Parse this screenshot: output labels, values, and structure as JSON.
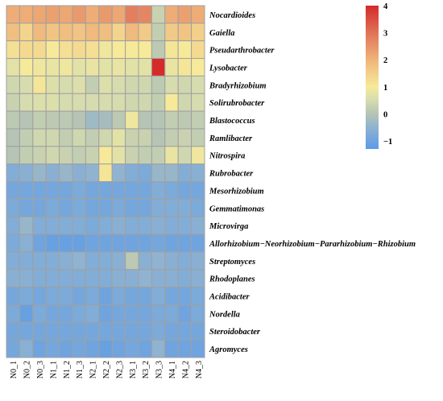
{
  "chart_data": {
    "type": "heatmap",
    "rows": [
      "Nocardioides",
      "Gaiella",
      "Pseudarthrobacter",
      "Lysobacter",
      "Bradyrhizobium",
      "Solirubrobacter",
      "Blastococcus",
      "Ramlibacter",
      "Nitrospira",
      "Rubrobacter",
      "Mesorhizobium",
      "Gemmatimonas",
      "Microvirga",
      "Allorhizobium−Neorhizobium−Pararhizobium−Rhizobium",
      "Streptomyces",
      "Rhodoplanes",
      "Acidibacter",
      "Nordella",
      "Steroidobacter",
      "Agromyces"
    ],
    "columns": [
      "N0_1",
      "N0_2",
      "N0_3",
      "N1_1",
      "N1_2",
      "N1_3",
      "N2_1",
      "N2_2",
      "N2_3",
      "N3_1",
      "N3_2",
      "N3_3",
      "N4_1",
      "N4_2",
      "N4_3"
    ],
    "values": [
      [
        2.1,
        2.1,
        2.2,
        2.3,
        2.2,
        2.4,
        2.1,
        2.4,
        2.2,
        2.8,
        2.7,
        0.3,
        2.1,
        2.3,
        2.1
      ],
      [
        1.8,
        1.4,
        1.9,
        1.7,
        1.8,
        1.7,
        1.9,
        1.8,
        1.4,
        1.9,
        1.6,
        0.2,
        1.6,
        1.7,
        1.5
      ],
      [
        1.2,
        1.3,
        1.3,
        1.0,
        1.2,
        1.3,
        1.2,
        0.9,
        1.0,
        1.0,
        1.0,
        0.1,
        1.1,
        1.0,
        1.3
      ],
      [
        0.7,
        1.0,
        0.9,
        0.8,
        0.9,
        0.7,
        0.8,
        0.7,
        0.8,
        0.7,
        0.7,
        4.0,
        0.8,
        1.1,
        1.0
      ],
      [
        0.4,
        0.5,
        1.1,
        0.6,
        0.5,
        0.6,
        0.2,
        0.6,
        0.5,
        0.4,
        0.4,
        0.1,
        0.5,
        0.4,
        0.5
      ],
      [
        0.3,
        0.5,
        0.6,
        0.6,
        0.5,
        0.5,
        0.5,
        0.5,
        0.5,
        0.4,
        0.4,
        0.2,
        1.0,
        0.4,
        0.5
      ],
      [
        0.1,
        0.0,
        0.2,
        0.1,
        0.1,
        0.0,
        -0.3,
        -0.2,
        0.1,
        0.9,
        0.0,
        0.0,
        0.2,
        0.1,
        0.2
      ],
      [
        0.0,
        0.2,
        0.4,
        0.4,
        0.2,
        0.4,
        0.2,
        0.4,
        0.7,
        0.3,
        0.3,
        0.0,
        0.2,
        0.3,
        0.2
      ],
      [
        0.0,
        0.2,
        0.3,
        0.4,
        0.3,
        0.2,
        0.3,
        1.0,
        0.7,
        0.3,
        0.2,
        0.2,
        0.8,
        0.4,
        0.9
      ],
      [
        -0.7,
        -0.6,
        -0.4,
        -0.6,
        -0.4,
        -0.6,
        -0.5,
        1.1,
        -0.5,
        -0.7,
        -0.8,
        -0.4,
        -0.4,
        -0.7,
        -0.6
      ],
      [
        -0.9,
        -0.9,
        -0.9,
        -0.9,
        -0.9,
        -0.8,
        -0.9,
        -0.9,
        -0.9,
        -0.9,
        -0.9,
        -0.7,
        -0.8,
        -0.9,
        -0.9
      ],
      [
        -0.8,
        -0.9,
        -0.9,
        -0.8,
        -0.9,
        -0.8,
        -0.9,
        -0.9,
        -0.8,
        -0.9,
        -0.9,
        -0.7,
        -0.7,
        -0.7,
        -0.8
      ],
      [
        -0.7,
        -0.4,
        -0.7,
        -0.7,
        -0.7,
        -0.7,
        -0.8,
        -0.7,
        -0.6,
        -0.7,
        -0.7,
        -0.6,
        -0.7,
        -0.7,
        -0.6
      ],
      [
        -0.8,
        -0.6,
        -1.0,
        -1.1,
        -1.1,
        -1.1,
        -1.0,
        -1.0,
        -1.0,
        -1.0,
        -1.0,
        -0.9,
        -1.0,
        -1.0,
        -1.0
      ],
      [
        -0.7,
        -0.7,
        -0.7,
        -0.7,
        -0.6,
        -0.5,
        -0.7,
        -0.7,
        -0.6,
        0.1,
        -0.6,
        -0.5,
        -0.6,
        -0.7,
        -0.6
      ],
      [
        -0.6,
        -0.6,
        -0.7,
        -0.7,
        -0.7,
        -0.7,
        -0.7,
        -0.7,
        -0.6,
        -0.6,
        -0.5,
        -0.6,
        -0.6,
        -0.7,
        -0.6
      ],
      [
        -0.9,
        -0.8,
        -0.9,
        -0.8,
        -0.8,
        -0.9,
        -0.8,
        -1.0,
        -0.8,
        -0.9,
        -0.9,
        -0.7,
        -0.9,
        -0.9,
        -0.8
      ],
      [
        -0.8,
        -1.1,
        -0.8,
        -0.9,
        -0.9,
        -0.8,
        -0.7,
        -1.0,
        -0.9,
        -0.9,
        -0.9,
        -0.8,
        -0.8,
        -1.0,
        -0.8
      ],
      [
        -0.9,
        -0.9,
        -0.9,
        -0.9,
        -0.9,
        -0.9,
        -0.9,
        -0.9,
        -0.9,
        -0.9,
        -0.9,
        -0.8,
        -0.9,
        -0.9,
        -0.9
      ],
      [
        -0.9,
        -0.6,
        -1.0,
        -0.9,
        -1.0,
        -0.9,
        -1.0,
        -1.1,
        -1.0,
        -0.9,
        -1.0,
        -0.5,
        -1.0,
        -1.0,
        -1.0
      ]
    ],
    "color_scale": {
      "ticks": [
        4,
        3,
        2,
        1,
        0,
        -1
      ],
      "tick_labels": [
        "4",
        "3",
        "2",
        "1",
        "0",
        "−1"
      ],
      "range": [
        -1.3,
        4.0
      ],
      "stops": [
        {
          "value": -1.3,
          "color": "#5b9be8"
        },
        {
          "value": -0.5,
          "color": "#8fb3d0"
        },
        {
          "value": 0.0,
          "color": "#b5c4b4"
        },
        {
          "value": 0.5,
          "color": "#d6dcae"
        },
        {
          "value": 1.0,
          "color": "#f6ea9a"
        },
        {
          "value": 2.0,
          "color": "#efb47a"
        },
        {
          "value": 3.0,
          "color": "#e07258"
        },
        {
          "value": 4.0,
          "color": "#d42a2a"
        }
      ]
    },
    "legend_position": "top-right",
    "grid": true
  }
}
